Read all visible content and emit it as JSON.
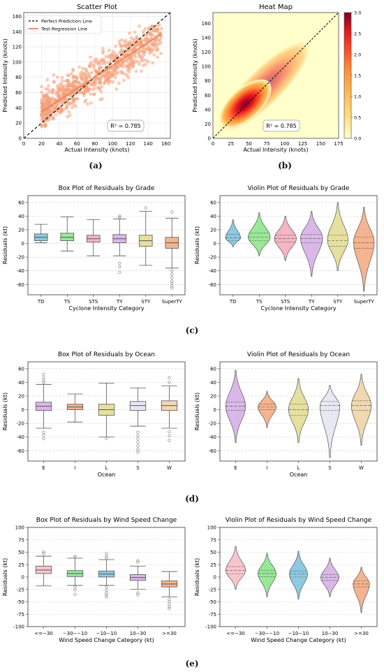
{
  "captions": [
    "(a)",
    "(b)",
    "(c)",
    "(d)",
    "(e)"
  ],
  "chart_data": [
    {
      "id": "scatter",
      "type": "scatter",
      "title": "Scatter Plot",
      "xlabel": "Actual Intensity (knots)",
      "ylabel": "Predicted Intensity (knots)",
      "xlim": [
        0,
        165
      ],
      "ylim": [
        0,
        165
      ],
      "xticks": [
        0,
        20,
        40,
        60,
        80,
        100,
        120,
        140,
        160
      ],
      "yticks": [
        0,
        20,
        40,
        60,
        80,
        100,
        120,
        140,
        160
      ],
      "legend": [
        "Perfect Prediction Line",
        "Test Regression Line"
      ],
      "legend_position": "top-left",
      "annotation": "R² = 0.785",
      "point_color": "#f4a582",
      "regression_color": "#e8845a",
      "regression": {
        "x": [
          20,
          155
        ],
        "y": [
          35,
          137
        ]
      },
      "perfect_line": {
        "x": [
          0,
          165
        ],
        "y": [
          0,
          165
        ]
      }
    },
    {
      "id": "heatmap",
      "type": "heatmap",
      "title": "Heat Map",
      "xlabel": "Actual Intensity (knots)",
      "ylabel": "Predicted Intensity (knots)",
      "xlim": [
        0,
        175
      ],
      "ylim": [
        0,
        175
      ],
      "xticks": [
        0,
        25,
        50,
        75,
        100,
        125,
        150,
        175
      ],
      "yticks": [
        0,
        20,
        40,
        60,
        80,
        100,
        120,
        140,
        160
      ],
      "colorbar_ticks": [
        "0.0",
        "0.5",
        "1.0",
        "1.5",
        "2.0",
        "2.5",
        "3.0"
      ],
      "colorbar_range": [
        0,
        3.0
      ],
      "annotation": "R² = 0.785",
      "density_peak": {
        "x": 45,
        "y": 48
      },
      "colors": {
        "low": "#ffffcc",
        "mid": "#fd8d3c",
        "high": "#800026"
      }
    },
    {
      "id": "box-grade",
      "type": "box",
      "title": "Box Plot of Residuals by Grade",
      "xlabel": "Cyclone Intensity Category",
      "ylabel": "Residuals (kt)",
      "ylim": [
        -75,
        70
      ],
      "yticks": [
        -60,
        -40,
        -20,
        0,
        20,
        40,
        60
      ],
      "categories": [
        "TD",
        "TS",
        "STS",
        "TY",
        "STY",
        "SuperTY"
      ],
      "colors": [
        "#8ec9e3",
        "#98e898",
        "#f4b6c2",
        "#d9b8e8",
        "#e6e0a0",
        "#f5b48f"
      ],
      "boxes": [
        {
          "q1": 4,
          "median": 9,
          "q3": 14,
          "whislo": 1,
          "whishi": 28,
          "fliers": []
        },
        {
          "q1": 4,
          "median": 9,
          "q3": 15,
          "whislo": -11,
          "whishi": 39,
          "fliers": []
        },
        {
          "q1": 2,
          "median": 7,
          "q3": 12,
          "whislo": -18,
          "whishi": 35,
          "fliers": []
        },
        {
          "q1": 1,
          "median": 7,
          "q3": 13,
          "whislo": -18,
          "whishi": 36,
          "fliers": [
            38,
            40,
            -29,
            -34,
            -42
          ]
        },
        {
          "q1": -4,
          "median": 4,
          "q3": 12,
          "whislo": -32,
          "whishi": 47,
          "fliers": [
            52
          ]
        },
        {
          "q1": -7,
          "median": 1,
          "q3": 9,
          "whislo": -36,
          "whishi": 37,
          "fliers": [
            46,
            -40,
            -45,
            -50,
            -55,
            -58,
            -62,
            -65
          ]
        }
      ]
    },
    {
      "id": "violin-grade",
      "type": "violin",
      "title": "Violin Plot of Residuals by Grade",
      "xlabel": "Cyclone Intensity Category",
      "ylabel": "Residuals (kt)",
      "ylim": [
        -75,
        70
      ],
      "yticks": [
        -60,
        -40,
        -20,
        0,
        20,
        40,
        60
      ],
      "categories": [
        "TD",
        "TS",
        "STS",
        "TY",
        "STY",
        "SuperTY"
      ],
      "colors": [
        "#8ec9e3",
        "#98e898",
        "#f4b6c2",
        "#d9b8e8",
        "#e6e0a0",
        "#f5b48f"
      ],
      "violins": [
        {
          "min": -5,
          "max": 35,
          "median": 8,
          "q1": 4,
          "q3": 13,
          "peak": 8,
          "width": 0.55
        },
        {
          "min": -18,
          "max": 45,
          "median": 9,
          "q1": 4,
          "q3": 15,
          "peak": 9,
          "width": 0.8
        },
        {
          "min": -25,
          "max": 40,
          "median": 7,
          "q1": 2,
          "q3": 12,
          "peak": 7,
          "width": 0.8
        },
        {
          "min": -48,
          "max": 47,
          "median": 7,
          "q1": 1,
          "q3": 13,
          "peak": 8,
          "width": 0.8
        },
        {
          "min": -40,
          "max": 60,
          "median": 4,
          "q1": -4,
          "q3": 12,
          "peak": 5,
          "width": 0.75
        },
        {
          "min": -70,
          "max": 53,
          "median": 1,
          "q1": -7,
          "q3": 9,
          "peak": 2,
          "width": 0.75
        }
      ]
    },
    {
      "id": "box-ocean",
      "type": "box",
      "title": "Box Plot of Residuals by Ocean",
      "xlabel": "Ocean",
      "ylabel": "Residuals (kt)",
      "ylim": [
        -75,
        70
      ],
      "yticks": [
        -60,
        -40,
        -20,
        0,
        20,
        40,
        60
      ],
      "categories": [
        "E",
        "I",
        "L",
        "S",
        "W"
      ],
      "colors": [
        "#d9b8e8",
        "#f5b48f",
        "#e6e0a0",
        "#e8e8f5",
        "#f0d8b0"
      ],
      "boxes": [
        {
          "q1": -1,
          "median": 5,
          "q3": 11,
          "whislo": -27,
          "whishi": 37,
          "fliers": [
            40,
            43,
            47,
            52,
            -33,
            -37,
            -42
          ]
        },
        {
          "q1": 0,
          "median": 4,
          "q3": 8,
          "whislo": -18,
          "whishi": 23,
          "fliers": []
        },
        {
          "q1": -8,
          "median": 0,
          "q3": 8,
          "whislo": -40,
          "whishi": 39,
          "fliers": [
            -42
          ]
        },
        {
          "q1": -1,
          "median": 6,
          "q3": 12,
          "whislo": -24,
          "whishi": 32,
          "fliers": [
            -33,
            -38,
            -43,
            -48,
            -53,
            -58,
            -62
          ]
        },
        {
          "q1": -1,
          "median": 6,
          "q3": 13,
          "whislo": -27,
          "whishi": 35,
          "fliers": [
            40,
            47,
            -32,
            -38,
            -45
          ]
        }
      ]
    },
    {
      "id": "violin-ocean",
      "type": "violin",
      "title": "Violin Plot of Residuals by Ocean",
      "xlabel": "Ocean",
      "ylabel": "Residuals (kt)",
      "ylim": [
        -75,
        70
      ],
      "yticks": [
        -60,
        -40,
        -20,
        0,
        20,
        40,
        60
      ],
      "categories": [
        "E",
        "I",
        "L",
        "S",
        "W"
      ],
      "colors": [
        "#d9b8e8",
        "#f5b48f",
        "#e6e0a0",
        "#e8e8f5",
        "#f0d8b0"
      ],
      "violins": [
        {
          "min": -48,
          "max": 58,
          "median": 5,
          "q1": -1,
          "q3": 11,
          "peak": 5,
          "width": 0.6
        },
        {
          "min": -26,
          "max": 27,
          "median": 4,
          "q1": 0,
          "q3": 8,
          "peak": 4,
          "width": 0.55
        },
        {
          "min": -48,
          "max": 46,
          "median": 0,
          "q1": -8,
          "q3": 8,
          "peak": 0,
          "width": 0.6
        },
        {
          "min": -70,
          "max": 36,
          "median": 6,
          "q1": -1,
          "q3": 12,
          "peak": 6,
          "width": 0.6
        },
        {
          "min": -52,
          "max": 52,
          "median": 6,
          "q1": -1,
          "q3": 13,
          "peak": 6,
          "width": 0.6
        }
      ]
    },
    {
      "id": "box-wind",
      "type": "box",
      "title": "Box Plot of Residuals by Wind Speed Change",
      "xlabel": "Wind Speed Change Category (kt)",
      "ylabel": "Residuals (kt)",
      "ylim": [
        -100,
        100
      ],
      "yticks": [
        -100,
        -75,
        -50,
        -25,
        0,
        25,
        50,
        75,
        100
      ],
      "categories": [
        "<=−30",
        "−30∼−10",
        "−10∼10",
        "10∼30",
        ">=30"
      ],
      "colors": [
        "#f7c6cc",
        "#98e898",
        "#8ec9e3",
        "#d9b8e8",
        "#f5b48f"
      ],
      "boxes": [
        {
          "q1": 7,
          "median": 14,
          "q3": 22,
          "whislo": -18,
          "whishi": 42,
          "fliers": [
            47,
            51
          ]
        },
        {
          "q1": 1,
          "median": 7,
          "q3": 13,
          "whislo": -17,
          "whishi": 38,
          "fliers": [
            40,
            41,
            -20,
            -26,
            -35
          ]
        },
        {
          "q1": 0,
          "median": 6,
          "q3": 12,
          "whislo": -17,
          "whishi": 35,
          "fliers": [
            38,
            42,
            47,
            -20,
            -26,
            -32,
            -36,
            -40
          ]
        },
        {
          "q1": -7,
          "median": -1,
          "q3": 5,
          "whislo": -25,
          "whishi": 22,
          "fliers": [
            30,
            33,
            -32,
            -36
          ]
        },
        {
          "q1": -20,
          "median": -14,
          "q3": -8,
          "whislo": -40,
          "whishi": 11,
          "fliers": [
            -45,
            -50,
            -55,
            -60,
            -64
          ]
        }
      ]
    },
    {
      "id": "violin-wind",
      "type": "violin",
      "title": "Violin Plot of Residuals by Wind Speed Change",
      "xlabel": "Wind Speed Change Category (kt)",
      "ylabel": "Residuals (kt)",
      "ylim": [
        -100,
        100
      ],
      "yticks": [
        -100,
        -75,
        -50,
        -25,
        0,
        25,
        50,
        75,
        100
      ],
      "categories": [
        "<=−30",
        "−30∼−10",
        "−10∼10",
        "10∼30",
        ">=30"
      ],
      "colors": [
        "#f7c6cc",
        "#98e898",
        "#8ec9e3",
        "#d9b8e8",
        "#f5b48f"
      ],
      "violins": [
        {
          "min": -25,
          "max": 62,
          "median": 13,
          "q1": 6,
          "q3": 21,
          "peak": 13,
          "width": 0.6
        },
        {
          "min": -40,
          "max": 48,
          "median": 7,
          "q1": 1,
          "q3": 13,
          "peak": 7,
          "width": 0.55
        },
        {
          "min": -45,
          "max": 52,
          "median": 6,
          "q1": 0,
          "q3": 12,
          "peak": 6,
          "width": 0.55
        },
        {
          "min": -40,
          "max": 38,
          "median": -1,
          "q1": -7,
          "q3": 5,
          "peak": -1,
          "width": 0.55
        },
        {
          "min": -72,
          "max": 20,
          "median": -14,
          "q1": -20,
          "q3": -8,
          "peak": -14,
          "width": 0.5
        }
      ]
    }
  ]
}
